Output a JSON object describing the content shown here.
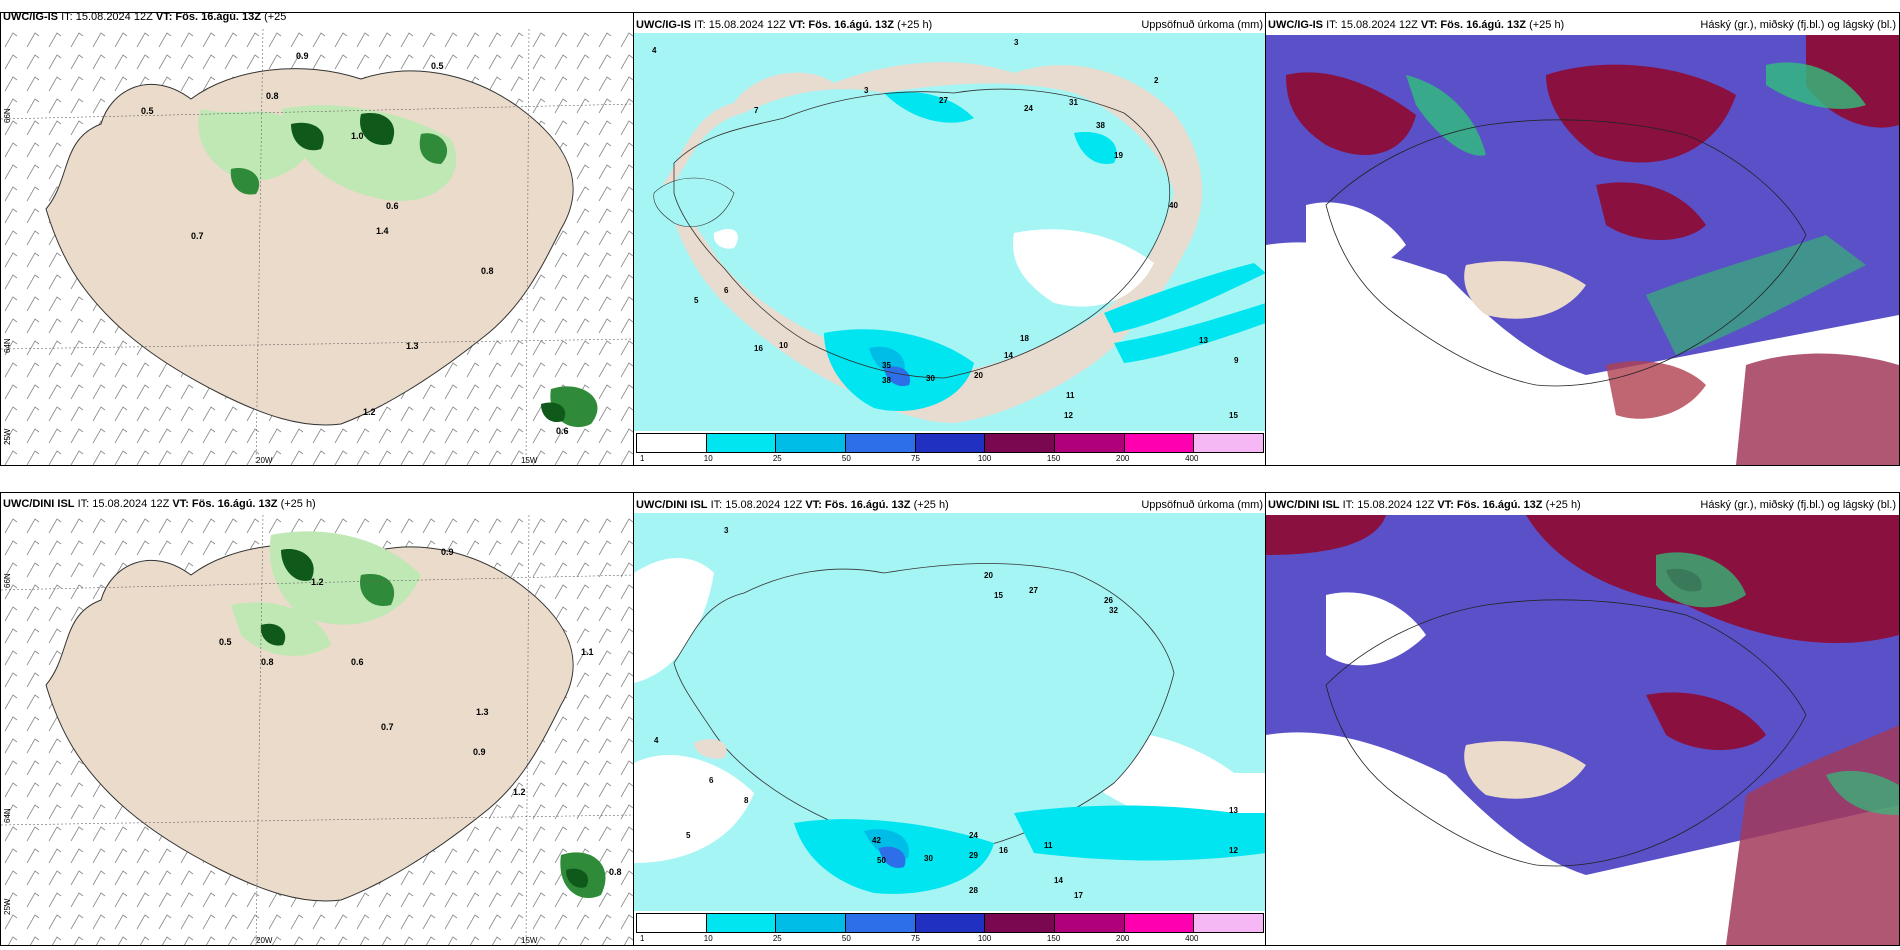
{
  "row1": {
    "left": {
      "model": "UWC/IG-IS",
      "it": "IT: 15.08.2024 12Z",
      "vt": "VT: Fös. 16.ágú. 13Z",
      "lead": "(+25"
    },
    "mid": {
      "model": "UWC/IG-IS",
      "it": "IT: 15.08.2024 12Z",
      "vt": "VT: Fös. 16.ágú. 13Z",
      "lead": "(+25 h)",
      "right": "Uppsöfnuð úrkoma (mm)"
    },
    "right": {
      "model": "UWC/IG-IS",
      "it": "IT: 15.08.2024 12Z",
      "vt": "VT: Fös. 16.ágú. 13Z",
      "lead": "(+25 h)",
      "right": "Háský (gr.), miðský (fj.bl.) og lágský (bl.)"
    }
  },
  "row2": {
    "left": {
      "model": "UWC/DINI ISL",
      "it": "IT: 15.08.2024 12Z",
      "vt": "VT: Fös. 16.ágú. 13Z",
      "lead": "(+25 h)"
    },
    "mid": {
      "model": "UWC/DINI ISL",
      "it": "IT: 15.08.2024 12Z",
      "vt": "VT: Fös. 16.ágú. 13Z",
      "lead": "(+25 h)",
      "right": "Uppsöfnuð úrkoma (mm)"
    },
    "right": {
      "model": "UWC/DINI ISL",
      "it": "IT: 15.08.2024 12Z",
      "vt": "VT: Fös. 16.ágú. 13Z",
      "lead": "(+25 h)",
      "right": "Háský (gr.), miðský (fj.bl.) og lágský (bl.)"
    }
  },
  "axes": {
    "lon20": "20W",
    "lon15": "15W",
    "lat66": "66N",
    "lat64": "64N",
    "lon25": "25W"
  },
  "colorbar": {
    "ticks": [
      "1",
      "10",
      "25",
      "50",
      "75",
      "100",
      "150",
      "200",
      "400"
    ],
    "colors": [
      "#ffffff",
      "#00e5f0",
      "#00bde8",
      "#2c6fe8",
      "#2030c0",
      "#7a0850",
      "#b0007a",
      "#ff00b0",
      "#f5b8f5"
    ]
  },
  "precip_labels_top": [
    "4",
    "3",
    "7",
    "2",
    "3",
    "27",
    "24",
    "31",
    "38",
    "19",
    "40",
    "35",
    "38",
    "30",
    "20",
    "18",
    "14",
    "13",
    "11",
    "12",
    "15",
    "9",
    "10",
    "16",
    "5",
    "6"
  ],
  "precip_labels_bot": [
    "3",
    "4",
    "20",
    "27",
    "15",
    "26",
    "32",
    "42",
    "50",
    "30",
    "28",
    "24",
    "29",
    "16",
    "14",
    "17",
    "13",
    "11",
    "12",
    "5",
    "6",
    "8"
  ],
  "wind_labels_top": [
    "0.9",
    "0.5",
    "0.8",
    "1.0",
    "0.6",
    "0.7",
    "1.4",
    "1.3",
    "1.2",
    "0.5",
    "0.8",
    "0.6"
  ],
  "wind_labels_bot": [
    "0.9",
    "1.2",
    "0.8",
    "0.5",
    "0.6",
    "1.1",
    "0.7",
    "1.3",
    "0.9",
    "1.2",
    "0.8"
  ]
}
